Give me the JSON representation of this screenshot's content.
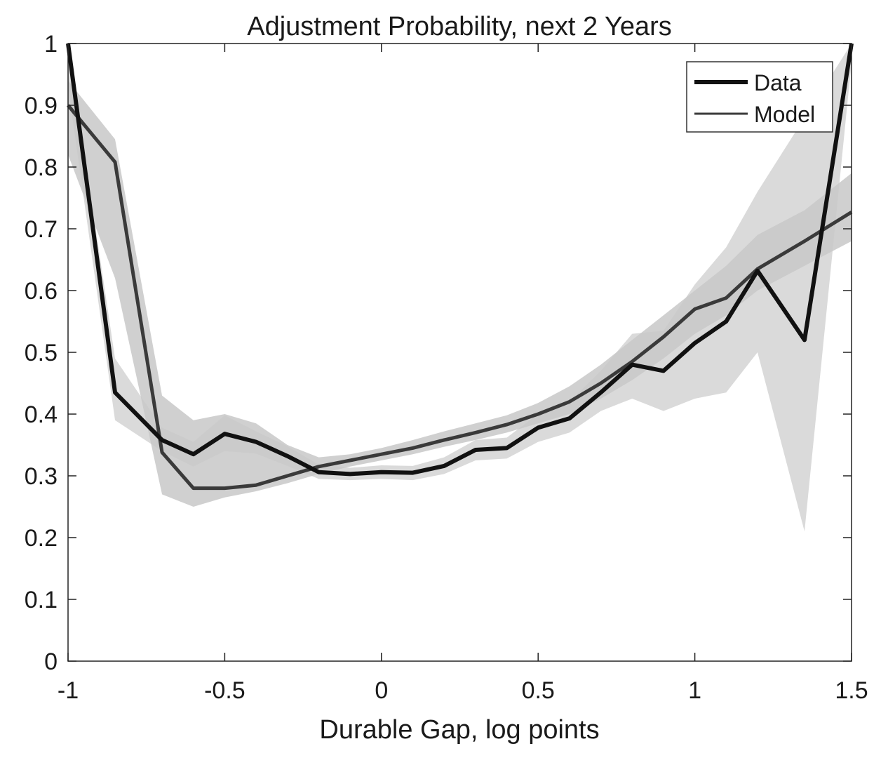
{
  "chart_data": {
    "type": "line",
    "title": "Adjustment Probability, next 2 Years",
    "xlabel": "Durable Gap, log points",
    "ylabel": "",
    "xlim": [
      -1,
      1.5
    ],
    "ylim": [
      0,
      1
    ],
    "xticks": [
      -1,
      -0.5,
      0,
      0.5,
      1,
      1.5
    ],
    "xtick_labels": [
      "-1",
      "-0.5",
      "0",
      "0.5",
      "1",
      "1.5"
    ],
    "yticks": [
      0,
      0.1,
      0.2,
      0.3,
      0.4,
      0.5,
      0.6,
      0.7,
      0.8,
      0.9,
      1
    ],
    "ytick_labels": [
      "0",
      "0.1",
      "0.2",
      "0.3",
      "0.4",
      "0.5",
      "0.6",
      "0.7",
      "0.8",
      "0.9",
      "1"
    ],
    "grid": false,
    "legend": "top-right",
    "series": [
      {
        "name": "Data",
        "color": "#111111",
        "x": [
          -1.0,
          -0.85,
          -0.7,
          -0.6,
          -0.5,
          -0.4,
          -0.3,
          -0.2,
          -0.1,
          0.0,
          0.1,
          0.2,
          0.3,
          0.4,
          0.5,
          0.6,
          0.7,
          0.8,
          0.9,
          1.0,
          1.1,
          1.2,
          1.35,
          1.5
        ],
        "y": [
          1.0,
          0.435,
          0.358,
          0.335,
          0.368,
          0.355,
          0.332,
          0.306,
          0.303,
          0.306,
          0.305,
          0.316,
          0.342,
          0.345,
          0.378,
          0.393,
          0.435,
          0.48,
          0.47,
          0.515,
          0.55,
          0.632,
          0.52,
          1.0
        ],
        "band_lower": [
          0.93,
          0.39,
          0.34,
          0.315,
          0.34,
          0.336,
          0.316,
          0.295,
          0.293,
          0.295,
          0.293,
          0.303,
          0.325,
          0.328,
          0.355,
          0.37,
          0.405,
          0.425,
          0.405,
          0.425,
          0.435,
          0.5,
          0.21,
          0.97
        ],
        "band_upper": [
          1.0,
          0.49,
          0.378,
          0.355,
          0.398,
          0.372,
          0.348,
          0.318,
          0.313,
          0.317,
          0.316,
          0.33,
          0.358,
          0.362,
          0.4,
          0.42,
          0.47,
          0.53,
          0.535,
          0.61,
          0.67,
          0.76,
          0.88,
          1.0
        ]
      },
      {
        "name": "Model",
        "color": "#3a3a3a",
        "x": [
          -1.0,
          -0.85,
          -0.7,
          -0.6,
          -0.5,
          -0.4,
          -0.3,
          -0.2,
          -0.1,
          0.0,
          0.1,
          0.2,
          0.3,
          0.4,
          0.5,
          0.6,
          0.7,
          0.8,
          0.9,
          1.0,
          1.1,
          1.2,
          1.35,
          1.5
        ],
        "y": [
          0.9,
          0.808,
          0.338,
          0.28,
          0.28,
          0.285,
          0.3,
          0.315,
          0.325,
          0.335,
          0.345,
          0.358,
          0.37,
          0.383,
          0.4,
          0.42,
          0.45,
          0.485,
          0.525,
          0.57,
          0.588,
          0.635,
          0.68,
          0.727
        ],
        "band_lower": [
          0.82,
          0.62,
          0.27,
          0.25,
          0.265,
          0.275,
          0.288,
          0.303,
          0.315,
          0.325,
          0.335,
          0.347,
          0.358,
          0.37,
          0.385,
          0.4,
          0.425,
          0.455,
          0.49,
          0.53,
          0.56,
          0.6,
          0.64,
          0.68
        ],
        "band_upper": [
          0.94,
          0.845,
          0.43,
          0.39,
          0.4,
          0.385,
          0.35,
          0.33,
          0.335,
          0.345,
          0.358,
          0.372,
          0.385,
          0.398,
          0.418,
          0.445,
          0.48,
          0.52,
          0.56,
          0.6,
          0.64,
          0.69,
          0.73,
          0.79
        ]
      }
    ]
  }
}
